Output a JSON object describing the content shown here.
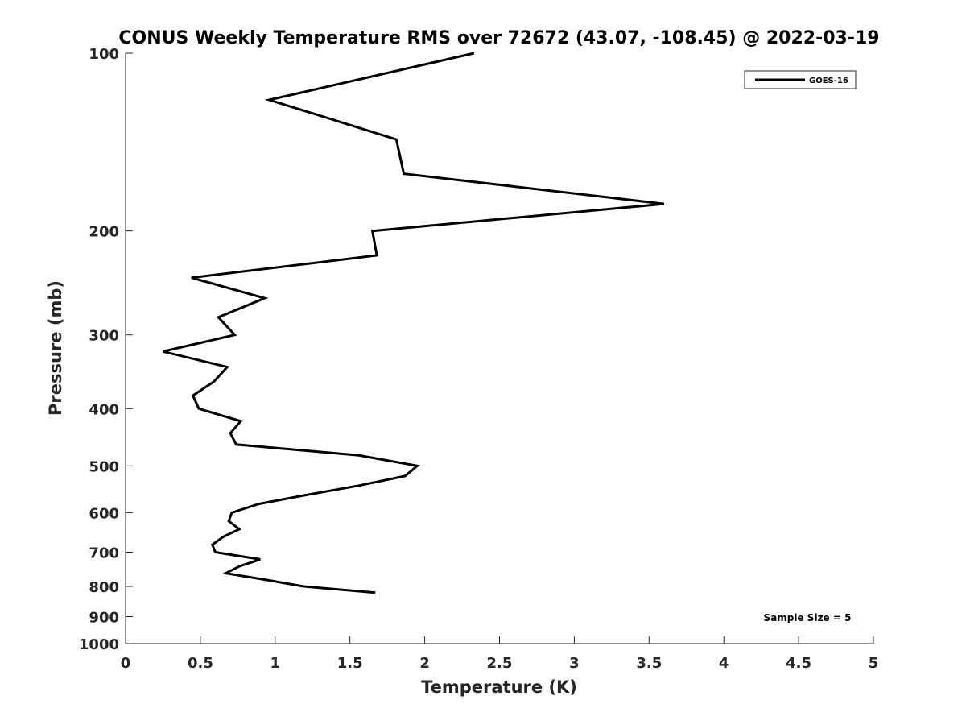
{
  "chart_data": {
    "type": "line",
    "title": "CONUS Weekly Temperature RMS over 72672 (43.07, -108.45) @ 2022-03-19",
    "xlabel": "Temperature (K)",
    "ylabel": "Pressure (mb)",
    "xlim": [
      0,
      5
    ],
    "ylim": [
      100,
      1000
    ],
    "yscale": "log",
    "yreversed": true,
    "grid": false,
    "xticks": [
      0,
      0.5,
      1,
      1.5,
      2,
      2.5,
      3,
      3.5,
      4,
      4.5,
      5
    ],
    "xtick_labels": [
      "0",
      "0.5",
      "1",
      "1.5",
      "2",
      "2.5",
      "3",
      "3.5",
      "4",
      "4.5",
      "5"
    ],
    "yticks": [
      100,
      200,
      300,
      400,
      500,
      600,
      700,
      800,
      900,
      1000
    ],
    "ytick_labels": [
      "100",
      "200",
      "300",
      "400",
      "500",
      "600",
      "700",
      "800",
      "900",
      "1000"
    ],
    "legend_position": "top-right",
    "annotation": "Sample Size = 5",
    "series": [
      {
        "name": "GOES-16",
        "color": "#000000",
        "pressure": [
          100,
          120,
          140,
          160,
          180,
          200,
          220,
          240,
          260,
          280,
          300,
          320,
          340,
          360,
          380,
          400,
          420,
          440,
          460,
          480,
          500,
          520,
          540,
          560,
          580,
          600,
          620,
          640,
          660,
          680,
          700,
          720,
          740,
          760,
          780,
          800,
          820
        ],
        "temperature": [
          2.33,
          0.96,
          1.81,
          1.86,
          3.6,
          1.65,
          1.68,
          0.44,
          0.93,
          0.62,
          0.73,
          0.25,
          0.68,
          0.59,
          0.45,
          0.49,
          0.77,
          0.7,
          0.74,
          1.56,
          1.95,
          1.87,
          1.56,
          1.21,
          0.89,
          0.71,
          0.69,
          0.76,
          0.65,
          0.58,
          0.6,
          0.9,
          0.76,
          0.67,
          0.94,
          1.19,
          1.67
        ]
      }
    ]
  }
}
